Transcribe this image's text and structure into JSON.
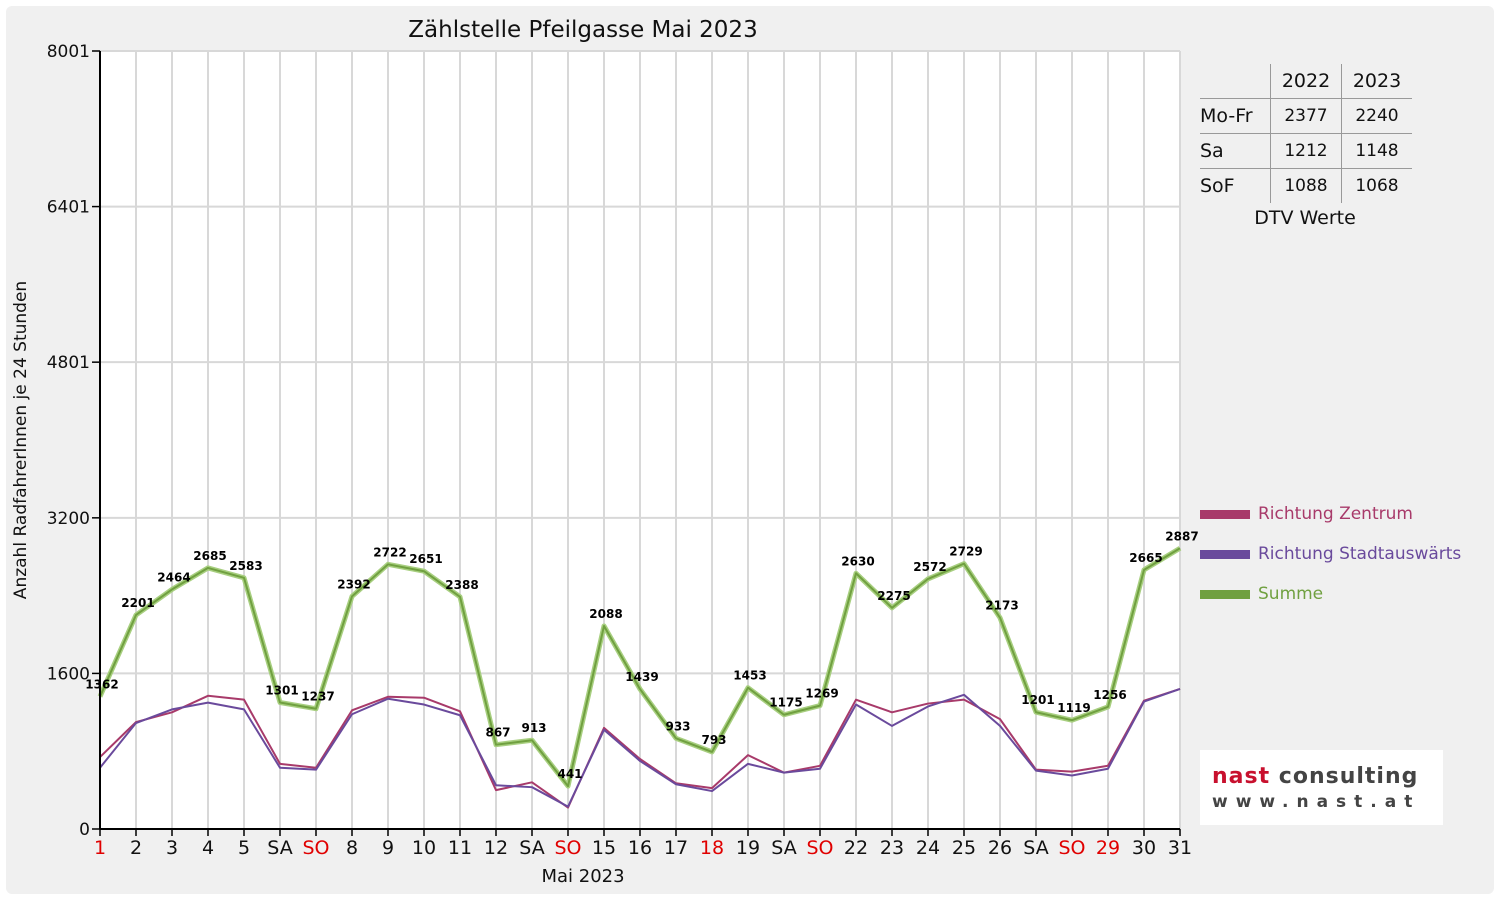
{
  "chart_data": {
    "type": "line",
    "title": "Zählstelle Pfeilgasse Mai 2023",
    "ylabel": "Anzahl RadfahrerInnen je 24 Stunden",
    "xlabel": "Mai 2023",
    "ylim": [
      0,
      8001
    ],
    "yticks": [
      "0",
      "1600",
      "3200",
      "4801",
      "6401",
      "8001"
    ],
    "ytick_values": [
      0,
      1600,
      3200,
      4801,
      6401,
      8001
    ],
    "grid": true,
    "legend_position": "right",
    "categories": [
      "1",
      "2",
      "3",
      "4",
      "5",
      "SA",
      "SO",
      "8",
      "9",
      "10",
      "11",
      "12",
      "SA",
      "SO",
      "15",
      "16",
      "17",
      "18",
      "19",
      "SA",
      "SO",
      "22",
      "23",
      "24",
      "25",
      "26",
      "SA",
      "SO",
      "29",
      "30",
      "31"
    ],
    "red_categories": [
      0,
      6,
      13,
      17,
      20,
      27,
      28
    ],
    "series": [
      {
        "name": "Richtung Zentrum",
        "color": "#a83a6a",
        "values": [
          740,
          1100,
          1200,
          1370,
          1330,
          670,
          630,
          1220,
          1360,
          1350,
          1210,
          400,
          480,
          220,
          1040,
          720,
          470,
          420,
          760,
          580,
          650,
          1330,
          1200,
          1290,
          1330,
          1130,
          610,
          590,
          650,
          1320,
          1440
        ]
      },
      {
        "name": "Richtung Stadtauswärts",
        "color": "#6a4a9c",
        "values": [
          630,
          1090,
          1230,
          1300,
          1230,
          630,
          610,
          1180,
          1340,
          1280,
          1170,
          450,
          430,
          230,
          1020,
          700,
          460,
          390,
          670,
          580,
          620,
          1280,
          1060,
          1260,
          1380,
          1060,
          600,
          550,
          620,
          1310,
          1440
        ]
      },
      {
        "name": "Summe",
        "color": "#70a040",
        "values": [
          1362,
          2201,
          2464,
          2685,
          2583,
          1301,
          1237,
          2392,
          2722,
          2651,
          2388,
          867,
          913,
          441,
          2088,
          1439,
          933,
          793,
          1453,
          1175,
          1269,
          2630,
          2275,
          2572,
          2729,
          2173,
          1201,
          1119,
          1256,
          2665,
          2887
        ]
      }
    ],
    "data_labels": [
      "1362",
      "2201",
      "2464",
      "2685",
      "2583",
      "1301",
      "1237",
      "2392",
      "2722",
      "2651",
      "2388",
      "867",
      "913",
      "441",
      "2088",
      "1439",
      "933",
      "793",
      "1453",
      "1175",
      "1269",
      "2630",
      "2275",
      "2572",
      "2729",
      "2173",
      "1201",
      "1119",
      "1256",
      "2665",
      "2887"
    ]
  },
  "dtv": {
    "col_headers": [
      "2022",
      "2023"
    ],
    "rows": [
      {
        "label": "Mo-Fr",
        "v2022": "2377",
        "v2023": "2240"
      },
      {
        "label": "Sa",
        "v2022": "1212",
        "v2023": "1148"
      },
      {
        "label": "SoF",
        "v2022": "1088",
        "v2023": "1068"
      }
    ],
    "caption": "DTV Werte"
  },
  "logo": {
    "name_part1": "nast",
    "name_part2": "consulting",
    "url": "www.nast.at"
  },
  "colors": {
    "red_day": "#e00000",
    "grid": "#d8d8d8",
    "axis": "#000000"
  }
}
